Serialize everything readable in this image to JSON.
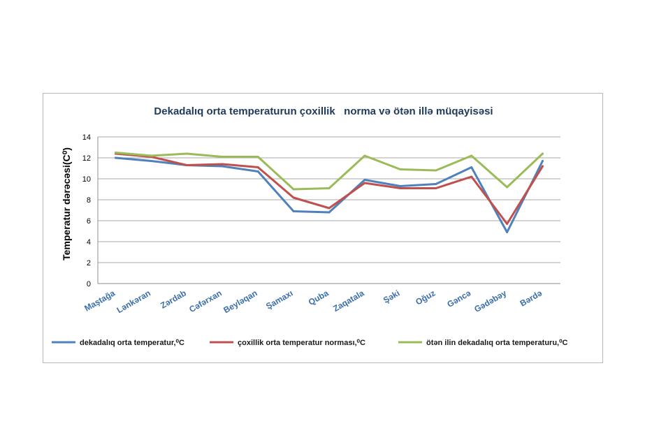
{
  "chart_data": {
    "type": "line",
    "title": "Dekadalıq orta temperaturun çoxillik   norma və ötən illə müqayisəsi",
    "ylabel": "Temperatur dərəcəsi(C⁰)",
    "xlabel": "",
    "ylim": [
      0,
      14
    ],
    "yticks": [
      0,
      2,
      4,
      6,
      8,
      10,
      12,
      14
    ],
    "grid": true,
    "legend_position": "bottom",
    "categories": [
      "Maştağa",
      "Lənkəran",
      "Zərdab",
      "Cəfərxan",
      "Beyləqan",
      "Şamaxı",
      "Quba",
      "Zaqatala",
      "Şəki",
      "Oğuz",
      "Gəncə",
      "Gədəbəy",
      "Bərdə"
    ],
    "series": [
      {
        "name": "dekadalıq orta temperatur,⁰C",
        "color": "#4f81bd",
        "values": [
          12.0,
          11.7,
          11.3,
          11.2,
          10.7,
          6.9,
          6.8,
          9.9,
          9.3,
          9.5,
          11.1,
          4.9,
          11.7
        ]
      },
      {
        "name": "çoxillik orta temperatur norması,⁰C",
        "color": "#c0504d",
        "values": [
          12.4,
          12.1,
          11.3,
          11.4,
          11.1,
          8.2,
          7.2,
          9.6,
          9.1,
          9.1,
          10.2,
          5.7,
          11.2
        ]
      },
      {
        "name": "ötən ilin dekadalıq orta temperaturu,⁰C",
        "color": "#9bbb59",
        "values": [
          12.5,
          12.2,
          12.4,
          12.1,
          12.1,
          9.0,
          9.1,
          12.2,
          10.9,
          10.8,
          12.2,
          9.2,
          12.4
        ]
      }
    ]
  }
}
